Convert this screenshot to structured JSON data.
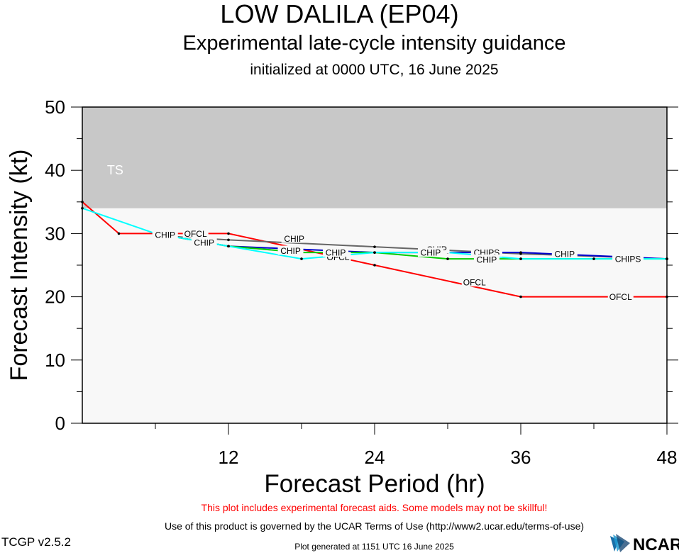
{
  "header": {
    "title": "LOW DALILA (EP04)",
    "subtitle": "Experimental late-cycle intensity guidance",
    "initialized": "initialized at 0000 UTC, 16 June 2025"
  },
  "footer": {
    "warning": "This plot includes experimental forecast aids. Some models may not be skillful!",
    "terms": "Use of this product is governed by the UCAR Terms of Use (http://www2.ucar.edu/terms-of-use)",
    "version": "TCGP v2.5.2",
    "generated": "Plot generated at 1151 UTC   16 June 2025",
    "logo_text": "NCAR"
  },
  "chart_data": {
    "type": "line",
    "xlabel": "Forecast Period (hr)",
    "ylabel": "Forecast Intensity (kt)",
    "xlim": [
      0,
      48
    ],
    "ylim": [
      0,
      50
    ],
    "xticks": [
      12,
      24,
      36,
      48
    ],
    "yticks": [
      0,
      10,
      20,
      30,
      40,
      50
    ],
    "bands": [
      {
        "label": "TS",
        "from": 34,
        "to": 50,
        "color": "#c8c8c8"
      }
    ],
    "series": [
      {
        "name": "OFCL",
        "color": "#ff0000",
        "x": [
          0,
          3,
          12,
          24,
          36,
          48
        ],
        "y": [
          35,
          30,
          30,
          25,
          20,
          20
        ],
        "labels": [
          {
            "x": 9.3,
            "y": 30.0
          },
          {
            "x": 21.0,
            "y": 26.3
          },
          {
            "x": 32.2,
            "y": 22.3
          },
          {
            "x": 44.2,
            "y": 20.0
          }
        ]
      },
      {
        "name": "CHIP",
        "color": "#666666",
        "x": [
          6,
          12,
          24,
          36,
          48
        ],
        "y": [
          29.7,
          29.0,
          27.9,
          26.8,
          26.0
        ],
        "labels": [
          {
            "x": 17.4,
            "y": 29.2
          },
          {
            "x": 29.1,
            "y": 27.5
          },
          {
            "x": 39.6,
            "y": 26.8
          }
        ]
      },
      {
        "name": "CHIPS",
        "color": "#0000cc",
        "x": [
          6,
          12,
          24,
          30,
          36,
          48
        ],
        "y": [
          30.0,
          28.0,
          27.0,
          27.0,
          27.0,
          26.0
        ],
        "labels": [
          {
            "x": 33.2,
            "y": 27.0
          },
          {
            "x": 44.8,
            "y": 26.0
          }
        ]
      },
      {
        "name": "CHIP",
        "color": "#00cc00",
        "x": [
          6,
          12,
          18,
          24,
          30,
          36,
          48
        ],
        "y": [
          30.0,
          28.0,
          27.0,
          27.0,
          26.0,
          26.0,
          26.0
        ],
        "labels": [
          {
            "x": 17.1,
            "y": 27.3
          },
          {
            "x": 33.2,
            "y": 25.9
          }
        ]
      },
      {
        "name": "CHIP",
        "color": "#00ffff",
        "x": [
          0,
          6,
          12,
          18,
          24,
          30,
          36,
          42,
          48
        ],
        "y": [
          34.0,
          30.0,
          28.0,
          26.0,
          27.0,
          27.0,
          26.0,
          26.0,
          26.0
        ],
        "labels": [
          {
            "x": 6.8,
            "y": 29.8
          },
          {
            "x": 10.0,
            "y": 28.6
          },
          {
            "x": 20.8,
            "y": 27.0
          },
          {
            "x": 28.6,
            "y": 27.0
          }
        ]
      }
    ]
  }
}
